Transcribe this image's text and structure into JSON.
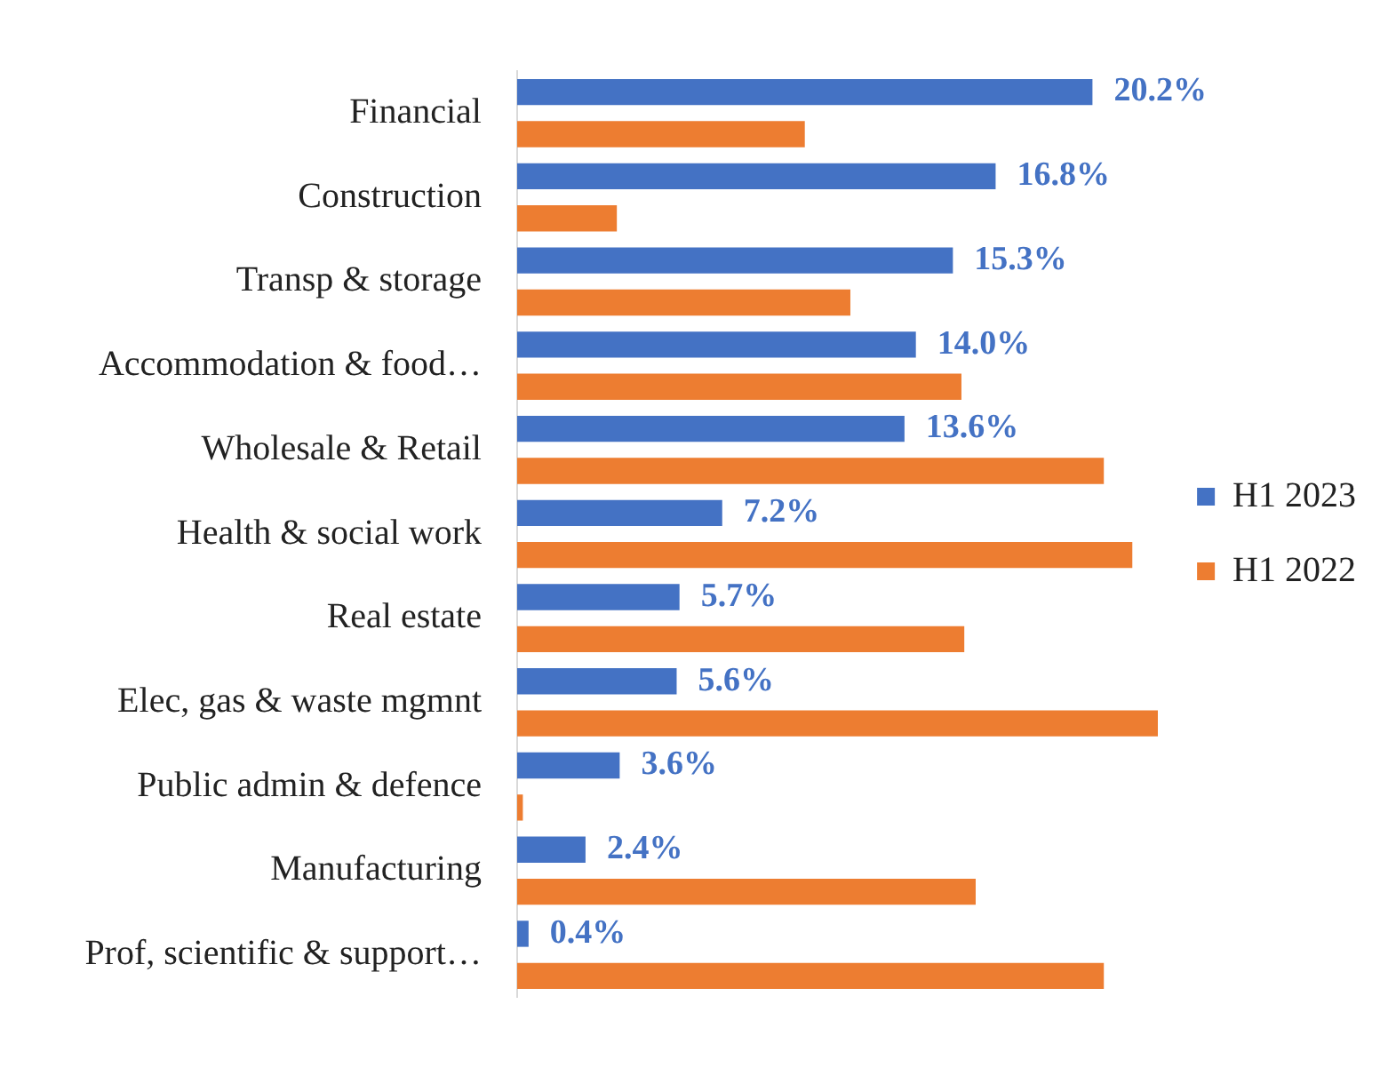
{
  "chart_data": {
    "type": "bar",
    "orientation": "horizontal",
    "xlim": [
      0,
      22.5
    ],
    "tick_labels": "y",
    "legend": "right",
    "categories": [
      "Financial",
      "Construction",
      "Transp & storage",
      "Accommodation & food…",
      "Wholesale & Retail",
      "Health & social work",
      "Real estate",
      "Elec, gas & waste mgmnt",
      "Public admin & defence",
      "Manufacturing",
      "Prof, scientific & support…"
    ],
    "series": [
      {
        "name": "H1 2023",
        "color": "#4472c4",
        "values": [
          20.2,
          16.8,
          15.3,
          14.0,
          13.6,
          7.2,
          5.7,
          5.6,
          3.6,
          2.4,
          0.4
        ],
        "value_labels": [
          "20.2%",
          "16.8%",
          "15.3%",
          "14.0%",
          "13.6%",
          "7.2%",
          "5.7%",
          "5.6%",
          "3.6%",
          "2.4%",
          "0.4%"
        ]
      },
      {
        "name": "H1 2022",
        "color": "#ed7d31",
        "values": [
          10.1,
          3.5,
          11.7,
          15.6,
          20.6,
          21.6,
          15.7,
          22.5,
          0.2,
          16.1,
          20.6
        ]
      }
    ]
  }
}
